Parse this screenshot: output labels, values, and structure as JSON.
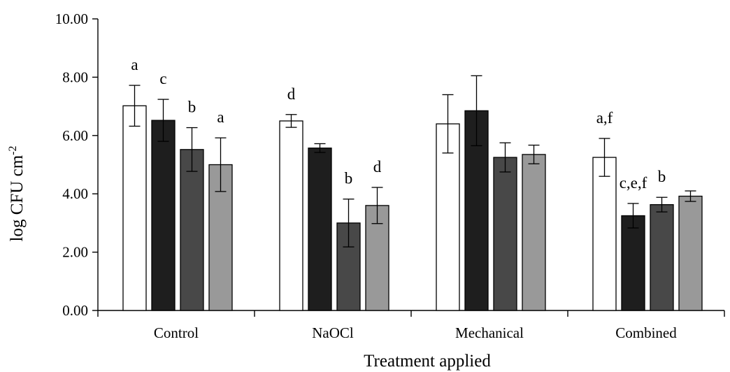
{
  "chart_data": {
    "type": "bar",
    "title": "",
    "xlabel": "Treatment applied",
    "ylabel": "log CFU cm-2",
    "ylabel_parts": {
      "main": "log CFU cm",
      "sup": "-2"
    },
    "ylim": [
      0,
      10
    ],
    "yticks": [
      "0.00",
      "2.00",
      "4.00",
      "6.00",
      "8.00",
      "10.00"
    ],
    "ytick_values": [
      0,
      2,
      4,
      6,
      8,
      10
    ],
    "grid": false,
    "legend": "none",
    "categories": [
      "Control",
      "NaOCl",
      "Mechanical",
      "Combined"
    ],
    "series": [
      {
        "color": "#ffffff",
        "values": [
          7.02,
          6.5,
          6.4,
          5.25
        ],
        "errors": [
          0.7,
          0.22,
          1.0,
          0.65
        ]
      },
      {
        "color": "#1e1e1e",
        "values": [
          6.52,
          5.57,
          6.85,
          3.25
        ],
        "errors": [
          0.72,
          0.15,
          1.2,
          0.42
        ]
      },
      {
        "color": "#484848",
        "values": [
          5.52,
          3.0,
          5.25,
          3.63
        ],
        "errors": [
          0.75,
          0.82,
          0.5,
          0.25
        ]
      },
      {
        "color": "#999999",
        "values": [
          5.0,
          3.6,
          5.35,
          3.92
        ],
        "errors": [
          0.92,
          0.62,
          0.32,
          0.18
        ]
      }
    ],
    "annotations": [
      {
        "category": 0,
        "series": 0,
        "text": "a"
      },
      {
        "category": 0,
        "series": 1,
        "text": "c"
      },
      {
        "category": 0,
        "series": 2,
        "text": "b"
      },
      {
        "category": 0,
        "series": 3,
        "text": "a"
      },
      {
        "category": 1,
        "series": 0,
        "text": "d"
      },
      {
        "category": 1,
        "series": 2,
        "text": "b"
      },
      {
        "category": 1,
        "series": 3,
        "text": "d"
      },
      {
        "category": 3,
        "series": 0,
        "text": "a,f"
      },
      {
        "category": 3,
        "series": 1,
        "text": "c,e,f"
      },
      {
        "category": 3,
        "series": 2,
        "text": "b"
      }
    ]
  }
}
